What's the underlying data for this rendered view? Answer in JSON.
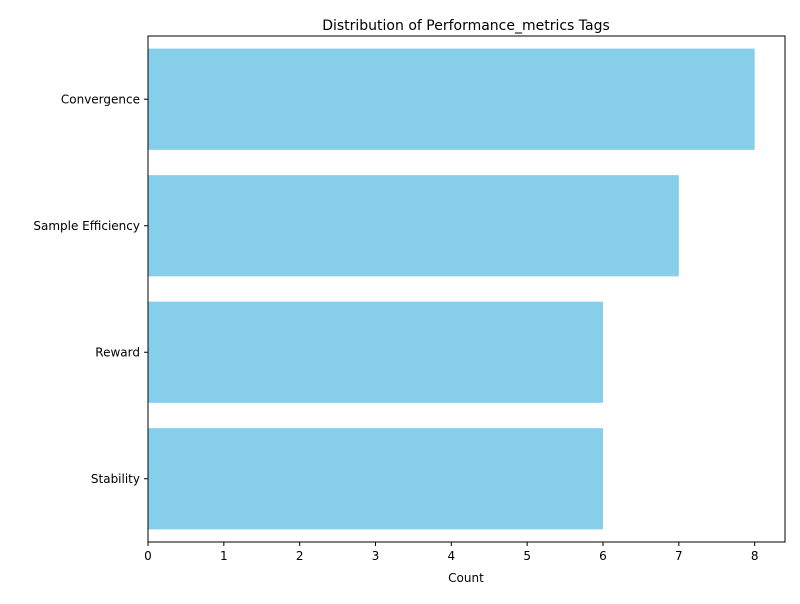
{
  "chart_data": {
    "type": "bar",
    "orientation": "horizontal",
    "title": "Distribution of Performance_metrics Tags",
    "xlabel": "Count",
    "ylabel": "",
    "categories": [
      "Convergence",
      "Sample Efficiency",
      "Reward",
      "Stability"
    ],
    "values": [
      8,
      7,
      6,
      6
    ],
    "xlim": [
      0,
      8.4
    ],
    "xticks": [
      "0",
      "1",
      "2",
      "3",
      "4",
      "5",
      "6",
      "7",
      "8"
    ],
    "bar_color": "#87ceeb",
    "grid": false,
    "legend": "none"
  }
}
